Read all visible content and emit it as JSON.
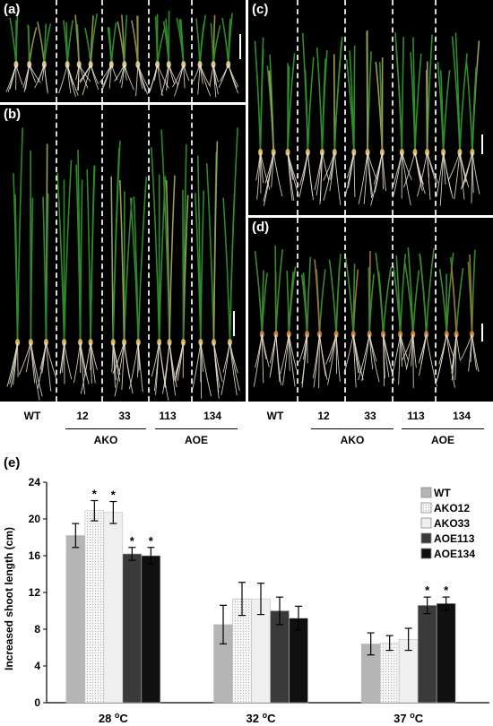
{
  "panels": {
    "a": {
      "label": "(a)"
    },
    "b": {
      "label": "(b)"
    },
    "c": {
      "label": "(c)"
    },
    "d": {
      "label": "(d)"
    },
    "e": {
      "label": "(e)"
    }
  },
  "genotypes_left": {
    "wt": "WT",
    "ko12": "12",
    "ko33": "33",
    "oe113": "113",
    "oe134": "134",
    "ako": "AKO",
    "aoe": "AOE"
  },
  "genotypes_right": {
    "wt": "WT",
    "ko12": "12",
    "ko33": "33",
    "oe113": "113",
    "oe134": "134",
    "ako": "AKO",
    "aoe": "AOE"
  },
  "colors": {
    "WT": "#b5b5b5",
    "AKO12": "#eeeeee",
    "AKO33": "#f5f5f5",
    "AOE113": "#3a3a3a",
    "AOE134": "#111111",
    "leaf": "#2f8a2a",
    "root": "#e8e2cf"
  },
  "chart_data": {
    "type": "bar",
    "title": "",
    "xlabel": "",
    "ylabel": "Increased shoot length (cm)",
    "ylim": [
      0,
      24
    ],
    "yticks": [
      0,
      4,
      8,
      12,
      16,
      20,
      24
    ],
    "categories": [
      "28 oC",
      "32 oC",
      "37 oC"
    ],
    "category_base": [
      "28 ",
      "32 ",
      "37 "
    ],
    "category_sup": "o",
    "category_unit": "C",
    "series": [
      {
        "name": "WT",
        "values": [
          18.2,
          8.5,
          6.4
        ],
        "errors": [
          1.3,
          2.1,
          1.2
        ],
        "sig": [
          "",
          "",
          ""
        ]
      },
      {
        "name": "AKO12",
        "values": [
          20.9,
          11.3,
          6.5
        ],
        "errors": [
          1.1,
          1.8,
          0.8
        ],
        "sig": [
          "*",
          "",
          ""
        ]
      },
      {
        "name": "AKO33",
        "values": [
          20.7,
          11.3,
          6.9
        ],
        "errors": [
          1.2,
          1.7,
          1.2
        ],
        "sig": [
          "*",
          "",
          ""
        ]
      },
      {
        "name": "AOE113",
        "values": [
          16.2,
          10.0,
          10.6
        ],
        "errors": [
          0.7,
          1.5,
          0.9
        ],
        "sig": [
          "*",
          "",
          "*"
        ]
      },
      {
        "name": "AOE134",
        "values": [
          16.0,
          9.2,
          10.8
        ],
        "errors": [
          0.9,
          1.3,
          0.7
        ],
        "sig": [
          "*",
          "",
          "*"
        ]
      }
    ],
    "legend_position": "top-right",
    "grid": false
  }
}
